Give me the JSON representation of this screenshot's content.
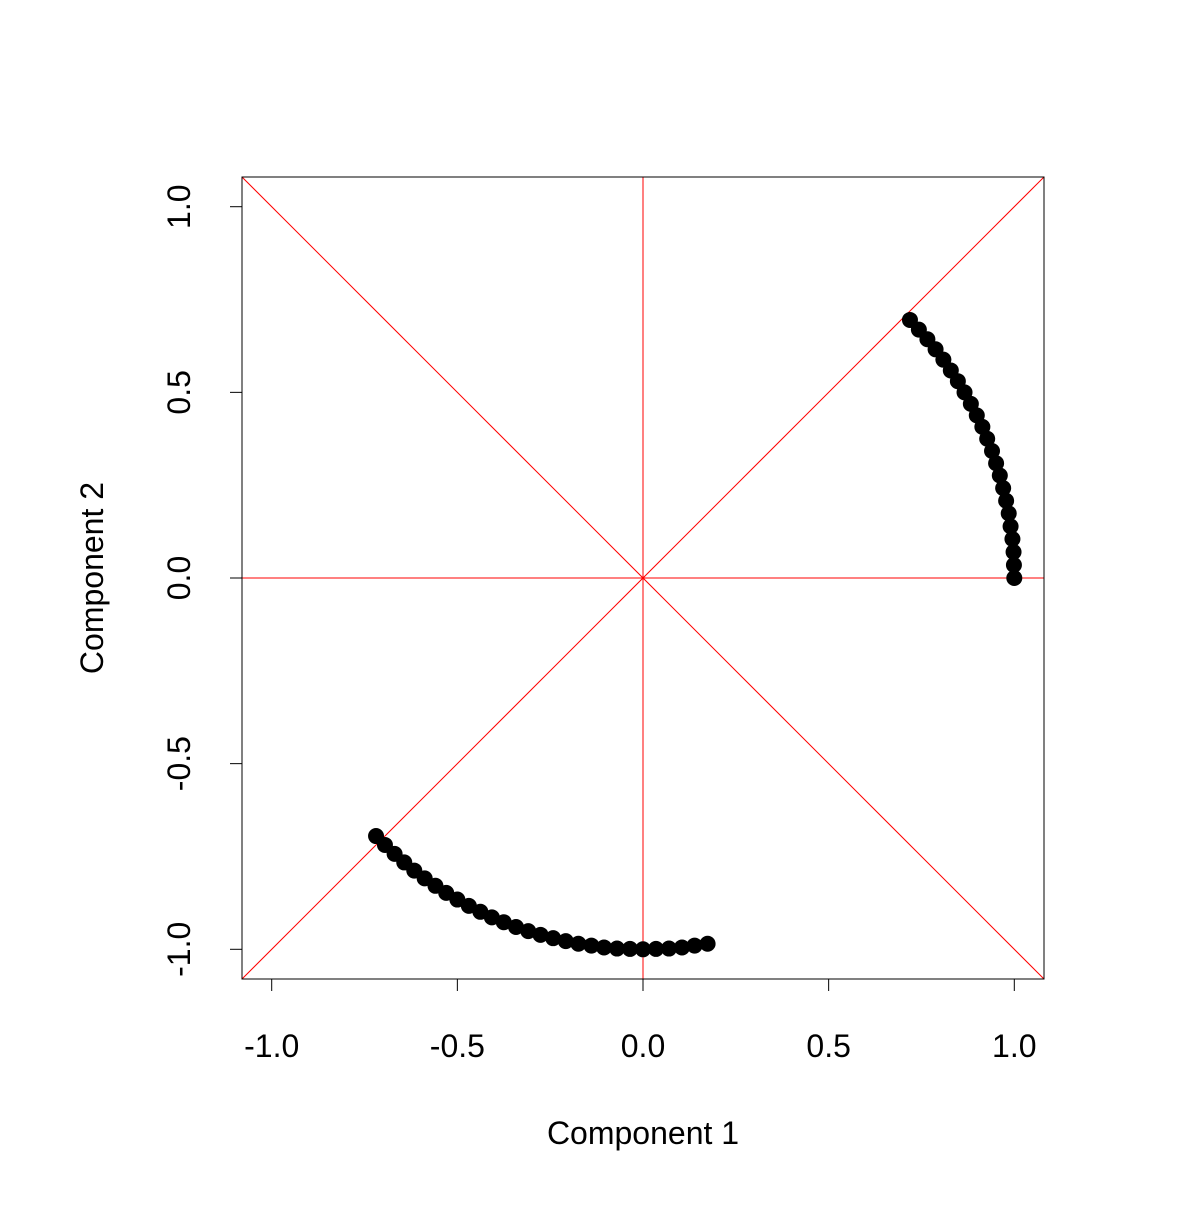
{
  "chart_data": {
    "type": "scatter",
    "xlabel": "Component 1",
    "ylabel": "Component 2",
    "xlim": [
      -1.08,
      1.08
    ],
    "ylim": [
      -1.08,
      1.08
    ],
    "xticks": [
      {
        "value": -1,
        "label": "-1.0"
      },
      -0.5,
      {
        "value": 0,
        "label": "0.0"
      },
      0.5,
      {
        "value": 1,
        "label": "1.0"
      }
    ],
    "yticks": [
      {
        "value": -1,
        "label": "-1.0"
      },
      -0.5,
      {
        "value": 0,
        "label": "0.0"
      },
      0.5,
      {
        "value": 1,
        "label": "1.0"
      }
    ],
    "color": "#000000",
    "reference_color": "#ff0000",
    "x": [
      1,
      0.999,
      0.998,
      0.995,
      0.99,
      0.985,
      0.978,
      0.97,
      0.961,
      0.951,
      0.94,
      0.927,
      0.914,
      0.899,
      0.883,
      0.866,
      0.848,
      0.829,
      0.809,
      0.788,
      0.766,
      0.743,
      0.719,
      -0.719,
      -0.695,
      -0.669,
      -0.643,
      -0.616,
      -0.588,
      -0.559,
      -0.53,
      -0.5,
      -0.469,
      -0.438,
      -0.407,
      -0.375,
      -0.342,
      -0.309,
      -0.276,
      -0.242,
      -0.208,
      -0.174,
      -0.139,
      -0.105,
      -0.07,
      -0.035,
      0,
      0.035,
      0.07,
      0.105,
      0.139,
      0.174
    ],
    "values": [
      0,
      0.035,
      0.07,
      0.105,
      0.139,
      0.174,
      0.208,
      0.242,
      0.276,
      0.309,
      0.342,
      0.375,
      0.407,
      0.438,
      0.469,
      0.5,
      0.53,
      0.559,
      0.588,
      0.616,
      0.643,
      0.669,
      0.695,
      -0.695,
      -0.719,
      -0.743,
      -0.766,
      -0.788,
      -0.809,
      -0.829,
      -0.848,
      -0.866,
      -0.883,
      -0.899,
      -0.914,
      -0.927,
      -0.94,
      -0.951,
      -0.961,
      -0.97,
      -0.978,
      -0.985,
      -0.99,
      -0.995,
      -0.998,
      -0.999,
      -1,
      -0.999,
      -0.998,
      -0.995,
      -0.99,
      -0.985
    ]
  }
}
